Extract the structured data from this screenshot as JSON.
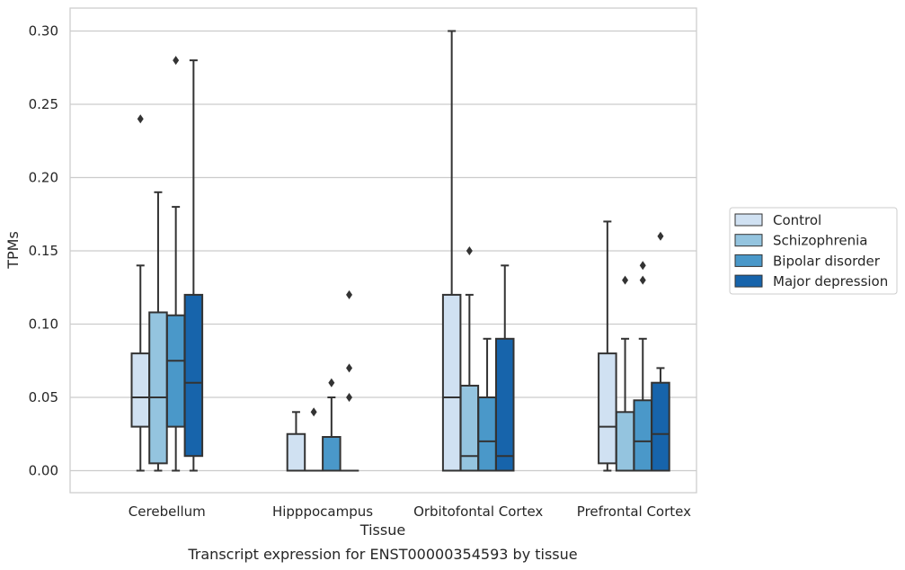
{
  "chart_data": {
    "type": "box",
    "title": "",
    "caption": "Transcript expression for ENST00000354593 by tissue",
    "xlabel": "Tissue",
    "ylabel": "TPMs",
    "ylim": [
      -0.015,
      0.315
    ],
    "yticks": [
      "0.00",
      "0.05",
      "0.10",
      "0.15",
      "0.20",
      "0.25",
      "0.30"
    ],
    "ytick_values": [
      0,
      0.05,
      0.1,
      0.15,
      0.2,
      0.25,
      0.3
    ],
    "grid": "horizontal",
    "legend_position": "right",
    "categories": [
      "Cerebellum",
      "Hipppocampus",
      "Orbitofontal Cortex",
      "Prefrontal Cortex"
    ],
    "series": [
      {
        "name": "Control",
        "color": "#d0e1f2",
        "boxes": [
          {
            "min": 0,
            "q1": 0.03,
            "median": 0.05,
            "q3": 0.08,
            "max": 0.14,
            "outliers": [
              0.24
            ]
          },
          {
            "min": 0,
            "q1": 0,
            "median": 0,
            "q3": 0.025,
            "max": 0.04,
            "outliers": []
          },
          {
            "min": 0,
            "q1": 0,
            "median": 0.05,
            "q3": 0.12,
            "max": 0.3,
            "outliers": []
          },
          {
            "min": 0,
            "q1": 0.005,
            "median": 0.03,
            "q3": 0.08,
            "max": 0.17,
            "outliers": []
          }
        ]
      },
      {
        "name": "Schizophrenia",
        "color": "#94c4df",
        "boxes": [
          {
            "min": 0,
            "q1": 0.005,
            "median": 0.05,
            "q3": 0.108,
            "max": 0.19,
            "outliers": []
          },
          {
            "min": 0,
            "q1": 0,
            "median": 0,
            "q3": 0,
            "max": 0,
            "outliers": [
              0.04
            ]
          },
          {
            "min": 0,
            "q1": 0,
            "median": 0.01,
            "q3": 0.058,
            "max": 0.12,
            "outliers": [
              0.15
            ]
          },
          {
            "min": 0,
            "q1": 0,
            "median": 0,
            "q3": 0.04,
            "max": 0.09,
            "outliers": [
              0.13
            ]
          }
        ]
      },
      {
        "name": "Bipolar disorder",
        "color": "#4a98c9",
        "boxes": [
          {
            "min": 0,
            "q1": 0.03,
            "median": 0.075,
            "q3": 0.106,
            "max": 0.18,
            "outliers": [
              0.28
            ]
          },
          {
            "min": 0,
            "q1": 0,
            "median": 0,
            "q3": 0.023,
            "max": 0.05,
            "outliers": [
              0.06
            ]
          },
          {
            "min": 0,
            "q1": 0,
            "median": 0.02,
            "q3": 0.05,
            "max": 0.09,
            "outliers": []
          },
          {
            "min": 0,
            "q1": 0,
            "median": 0.02,
            "q3": 0.048,
            "max": 0.09,
            "outliers": [
              0.13,
              0.14
            ]
          }
        ]
      },
      {
        "name": "Major depression",
        "color": "#1764ab",
        "boxes": [
          {
            "min": 0,
            "q1": 0.01,
            "median": 0.06,
            "q3": 0.12,
            "max": 0.28,
            "outliers": []
          },
          {
            "min": 0,
            "q1": 0,
            "median": 0,
            "q3": 0,
            "max": 0,
            "outliers": [
              0.05,
              0.07,
              0.12
            ]
          },
          {
            "min": 0,
            "q1": 0,
            "median": 0.01,
            "q3": 0.09,
            "max": 0.14,
            "outliers": []
          },
          {
            "min": 0,
            "q1": 0,
            "median": 0.025,
            "q3": 0.06,
            "max": 0.07,
            "outliers": [
              0.16
            ]
          }
        ]
      }
    ]
  }
}
